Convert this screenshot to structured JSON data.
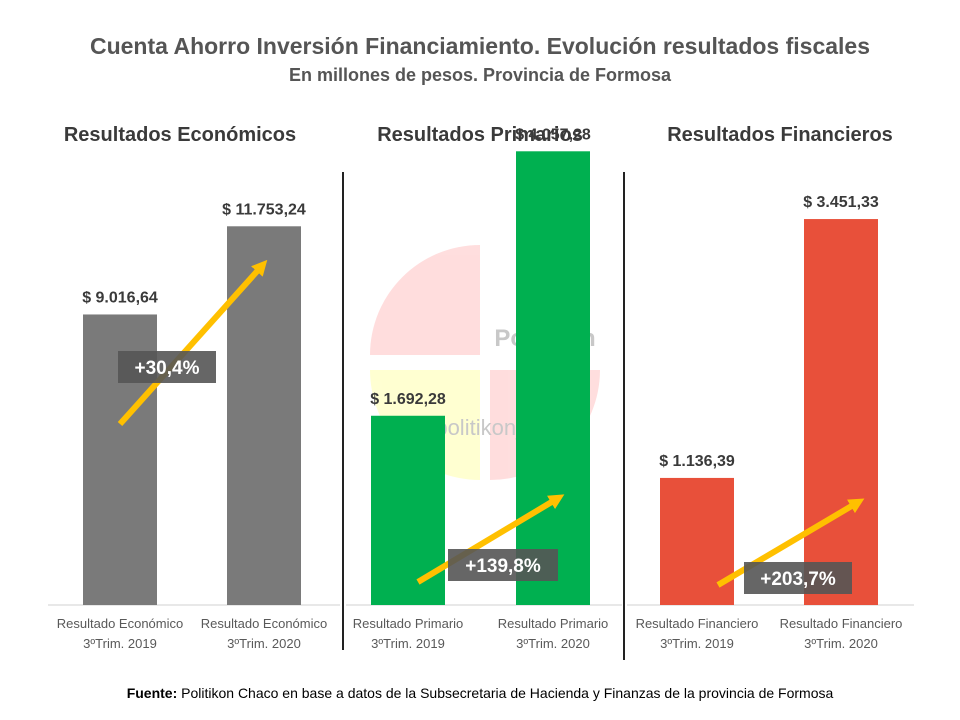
{
  "header": {
    "title": "Cuenta Ahorro Inversión Financiamiento. Evolución resultados fiscales",
    "subtitle": "En millones de pesos. Provincia de Formosa"
  },
  "watermark": {
    "brand": "Politikon",
    "handle": "@politikon_chaco"
  },
  "colors": {
    "economico": "#7a7a7a",
    "primario": "#00b050",
    "financiero": "#e8503a",
    "arrow": "#ffc000",
    "badge": "#555555"
  },
  "chart_data": [
    {
      "type": "bar",
      "title": "Resultados Económicos",
      "categories": [
        "Resultado Económico 3ºTrim. 2019",
        "Resultado Económico 3ºTrim. 2020"
      ],
      "category_lines": [
        [
          "Resultado Económico",
          "3ºTrim. 2019"
        ],
        [
          "Resultado Económico",
          "3ºTrim. 2020"
        ]
      ],
      "values": [
        9016.64,
        11753.24
      ],
      "value_labels": [
        "$ 9.016,64",
        "$ 11.753,24"
      ],
      "change_label": "+30,4%",
      "color": "#7a7a7a",
      "ylim": [
        0,
        13500
      ]
    },
    {
      "type": "bar",
      "title": "Resultados Primarios",
      "categories": [
        "Resultado Primario 3ºTrim. 2019",
        "Resultado Primario 3ºTrim. 2020"
      ],
      "category_lines": [
        [
          "Resultado Primario",
          "3ºTrim. 2019"
        ],
        [
          "Resultado Primario",
          "3ºTrim. 2020"
        ]
      ],
      "values": [
        1692.28,
        4057.28
      ],
      "value_labels": [
        "$ 1.692,28",
        "$ 4.057,28"
      ],
      "change_label": "+139,8%",
      "color": "#00b050",
      "ylim": [
        0,
        3890
      ]
    },
    {
      "type": "bar",
      "title": "Resultados Financieros",
      "categories": [
        "Resultado Financiero 3ºTrim. 2019",
        "Resultado Financiero 3ºTrim. 2020"
      ],
      "category_lines": [
        [
          "Resultado Financiero",
          "3ºTrim. 2019"
        ],
        [
          "Resultado Financiero",
          "3ºTrim. 2020"
        ]
      ],
      "values": [
        1136.39,
        3451.33
      ],
      "value_labels": [
        "$ 1.136,39",
        "$ 3.451,33"
      ],
      "change_label": "+203,7%",
      "color": "#e8503a",
      "ylim": [
        0,
        3890
      ]
    }
  ],
  "source": {
    "label": "Fuente:",
    "text": " Politikon Chaco en base a datos de la Subsecretaria de Hacienda y Finanzas de la provincia de Formosa"
  }
}
